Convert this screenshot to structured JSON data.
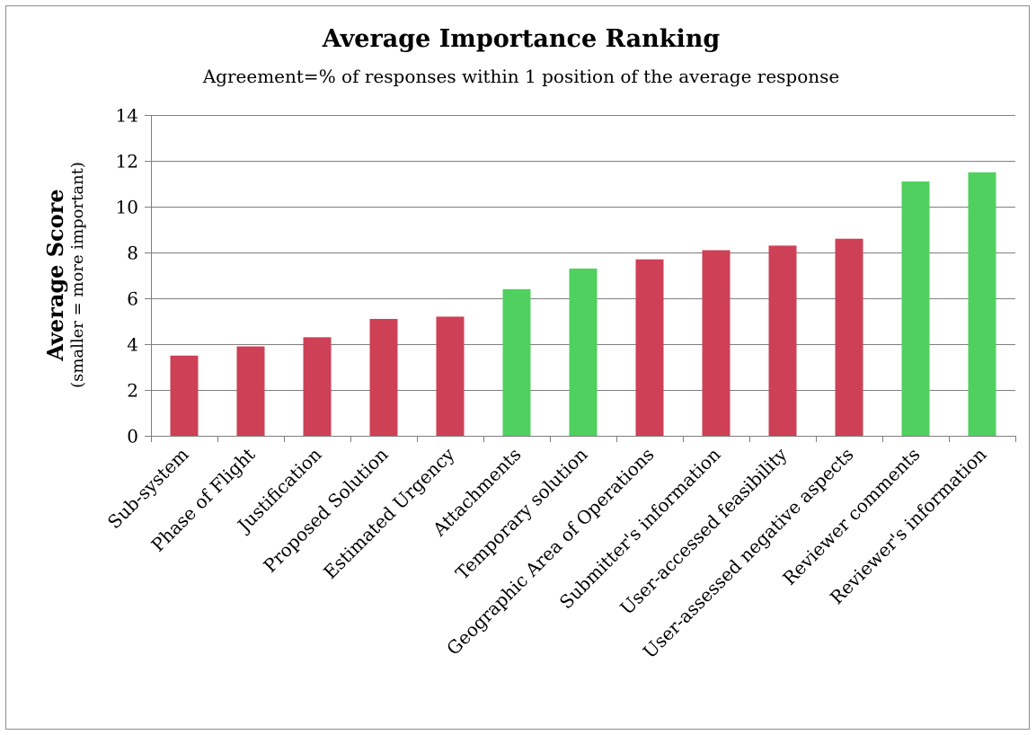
{
  "chart_data": {
    "type": "bar",
    "title": "Average Importance Ranking",
    "subtitle": "Agreement=% of responses within 1 position of the average response",
    "ylabel": "Average Score",
    "ylabel_sub": "(smaller = more important)",
    "xlabel": "",
    "ylim": [
      0,
      14
    ],
    "yticks": [
      0,
      2,
      4,
      6,
      8,
      10,
      12,
      14
    ],
    "grid": true,
    "legend": "none",
    "categories": [
      "Sub-system",
      "Phase of Flight",
      "Justification",
      "Proposed Solution",
      "Estimated Urgency",
      "Attachments",
      "Temporary solution",
      "Geographic Area of Operations",
      "Submitter's information",
      "User-accessed feasibility",
      "User-assessed negative aspects",
      "Reviewer comments",
      "Reviewer's information"
    ],
    "values": [
      3.5,
      3.9,
      4.3,
      5.1,
      5.2,
      6.4,
      7.3,
      7.7,
      8.1,
      8.3,
      8.6,
      11.1,
      11.5
    ],
    "bar_colors": [
      "red",
      "red",
      "red",
      "red",
      "red",
      "green",
      "green",
      "red",
      "red",
      "red",
      "red",
      "green",
      "green"
    ],
    "colors": {
      "red": "#cd4055",
      "green": "#4fd05f"
    }
  }
}
